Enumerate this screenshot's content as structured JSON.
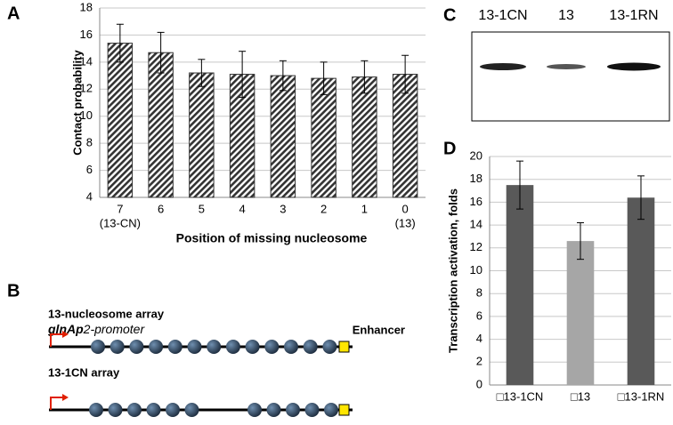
{
  "panels": [
    "A",
    "B",
    "C",
    "D"
  ],
  "chart_data": [
    {
      "type": "bar",
      "ylabel": "Contact probability",
      "xlabel": "Position of missing nucleosome",
      "categories": [
        "7",
        "6",
        "5",
        "4",
        "3",
        "2",
        "1",
        "0"
      ],
      "category_sublabels": [
        "(13-CN)",
        null,
        null,
        null,
        null,
        null,
        null,
        "(13)"
      ],
      "values": [
        15.4,
        14.7,
        13.2,
        13.1,
        13.0,
        12.8,
        12.9,
        13.1
      ],
      "errors": [
        1.4,
        1.5,
        1.0,
        1.7,
        1.1,
        1.2,
        1.2,
        1.4
      ],
      "color": "#333333",
      "hatch": true,
      "ylim": [
        4,
        18
      ],
      "yticks": [
        4,
        6,
        8,
        10,
        12,
        14,
        16,
        18
      ],
      "grid": true
    },
    {
      "type": "bar",
      "ylabel": "Transcription activation, folds",
      "categories": [
        "□13-1CN",
        "□13",
        "□13-1RN"
      ],
      "values": [
        17.5,
        12.6,
        16.4
      ],
      "errors": [
        2.1,
        1.6,
        1.9
      ],
      "colors": [
        "#595959",
        "#a6a6a6",
        "#595959"
      ],
      "ylim": [
        0,
        20
      ],
      "yticks": [
        0,
        2,
        4,
        6,
        8,
        10,
        12,
        14,
        16,
        18,
        20
      ],
      "grid": true
    }
  ],
  "diagram": {
    "array1_label": "13-nucleosome array",
    "promoter_italic": "glnAp",
    "promoter_rest": "2-promoter",
    "enhancer": "Enhancer",
    "array2_label": "13-1CN array"
  },
  "gel": {
    "lanes": [
      "13-1CN",
      "13",
      "13-1RN"
    ]
  }
}
